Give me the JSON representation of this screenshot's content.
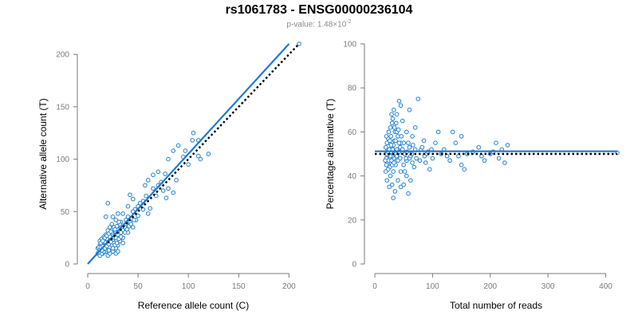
{
  "header": {
    "title": "rs1061783 - ENSG00000236104",
    "pvalue_prefix": "p-value: 1.48×10",
    "pvalue_exponent": "-2"
  },
  "colors": {
    "points": "#1f7fcf",
    "fit_line": "#1e7ad4",
    "reference_line": "#000000",
    "ticks": "#7a7a7a"
  },
  "chart_data": [
    {
      "type": "scatter",
      "xlabel": "Reference allele count (C)",
      "ylabel": "Alternative allele count (T)",
      "xlim": [
        0,
        210
      ],
      "ylim": [
        0,
        210
      ],
      "xticks": [
        0,
        50,
        100,
        150,
        200
      ],
      "yticks": [
        0,
        50,
        100,
        150,
        200
      ],
      "grid": false,
      "fit_line": {
        "from": [
          0,
          0
        ],
        "to": [
          200,
          210
        ],
        "style": "solid"
      },
      "reference_line": {
        "from": [
          20,
          20
        ],
        "to": [
          210,
          210
        ],
        "style": "dotted"
      },
      "points": [
        [
          210,
          210
        ],
        [
          105,
          125
        ],
        [
          110,
          118
        ],
        [
          90,
          113
        ],
        [
          85,
          108
        ],
        [
          95,
          102
        ],
        [
          110,
          103
        ],
        [
          112,
          100
        ],
        [
          120,
          105
        ],
        [
          100,
          95
        ],
        [
          70,
          88
        ],
        [
          77,
          86
        ],
        [
          88,
          80
        ],
        [
          70,
          75
        ],
        [
          80,
          72
        ],
        [
          75,
          70
        ],
        [
          85,
          68
        ],
        [
          65,
          72
        ],
        [
          68,
          65
        ],
        [
          78,
          63
        ],
        [
          58,
          65
        ],
        [
          55,
          60
        ],
        [
          52,
          58
        ],
        [
          50,
          55
        ],
        [
          47,
          52
        ],
        [
          45,
          50
        ],
        [
          55,
          52
        ],
        [
          60,
          48
        ],
        [
          62,
          53
        ],
        [
          40,
          45
        ],
        [
          42,
          40
        ],
        [
          38,
          38
        ],
        [
          48,
          42
        ],
        [
          50,
          46
        ],
        [
          37,
          35
        ],
        [
          33,
          40
        ],
        [
          35,
          32
        ],
        [
          30,
          36
        ],
        [
          28,
          30
        ],
        [
          25,
          28
        ],
        [
          22,
          30
        ],
        [
          20,
          25
        ],
        [
          18,
          22
        ],
        [
          15,
          20
        ],
        [
          12,
          18
        ],
        [
          10,
          15
        ],
        [
          13,
          14
        ],
        [
          16,
          16
        ],
        [
          20,
          20
        ],
        [
          25,
          22
        ],
        [
          28,
          25
        ],
        [
          30,
          28
        ],
        [
          33,
          30
        ],
        [
          35,
          25
        ],
        [
          40,
          30
        ],
        [
          45,
          35
        ],
        [
          18,
          12
        ],
        [
          20,
          14
        ],
        [
          22,
          16
        ],
        [
          24,
          18
        ],
        [
          26,
          20
        ],
        [
          28,
          15
        ],
        [
          30,
          18
        ],
        [
          32,
          22
        ],
        [
          35,
          20
        ],
        [
          15,
          10
        ],
        [
          12,
          12
        ],
        [
          14,
          15
        ],
        [
          16,
          18
        ],
        [
          18,
          20
        ],
        [
          20,
          8
        ],
        [
          22,
          10
        ],
        [
          25,
          12
        ],
        [
          28,
          10
        ],
        [
          30,
          12
        ],
        [
          10,
          10
        ],
        [
          12,
          8
        ],
        [
          14,
          10
        ],
        [
          16,
          12
        ],
        [
          18,
          14
        ],
        [
          12,
          22
        ],
        [
          14,
          24
        ],
        [
          16,
          26
        ],
        [
          18,
          28
        ],
        [
          20,
          32
        ],
        [
          22,
          35
        ],
        [
          24,
          38
        ],
        [
          18,
          45
        ],
        [
          20,
          58
        ],
        [
          25,
          45
        ],
        [
          28,
          42
        ],
        [
          30,
          48
        ],
        [
          35,
          48
        ],
        [
          38,
          42
        ],
        [
          32,
          38
        ],
        [
          26,
          35
        ],
        [
          24,
          30
        ],
        [
          22,
          26
        ],
        [
          19,
          24
        ],
        [
          17,
          21
        ],
        [
          11,
          16
        ],
        [
          13,
          20
        ],
        [
          15,
          22
        ],
        [
          17,
          25
        ],
        [
          19,
          27
        ],
        [
          21,
          29
        ],
        [
          23,
          31
        ],
        [
          27,
          33
        ],
        [
          29,
          36
        ],
        [
          31,
          40
        ],
        [
          40,
          55
        ],
        [
          45,
          62
        ],
        [
          42,
          66
        ],
        [
          57,
          75
        ],
        [
          60,
          80
        ],
        [
          65,
          85
        ],
        [
          73,
          78
        ],
        [
          80,
          100
        ],
        [
          97,
          108
        ],
        [
          104,
          118
        ],
        [
          25,
          15
        ],
        [
          27,
          18
        ],
        [
          29,
          20
        ],
        [
          31,
          24
        ],
        [
          33,
          26
        ],
        [
          37,
          30
        ],
        [
          39,
          33
        ],
        [
          41,
          36
        ],
        [
          43,
          38
        ],
        [
          46,
          42
        ],
        [
          12,
          13
        ],
        [
          14,
          13
        ],
        [
          11,
          11
        ],
        [
          13,
          16
        ],
        [
          15,
          17
        ],
        [
          17,
          15
        ],
        [
          19,
          17
        ],
        [
          21,
          19
        ],
        [
          23,
          21
        ],
        [
          21,
          13
        ]
      ]
    },
    {
      "type": "scatter",
      "xlabel": "Total number of reads",
      "ylabel": "Percentage alternative (T)",
      "xlim": [
        0,
        420
      ],
      "ylim": [
        0,
        100
      ],
      "xticks": [
        0,
        100,
        200,
        300,
        400
      ],
      "yticks": [
        0,
        20,
        40,
        60,
        80,
        100
      ],
      "grid": false,
      "fit_line": {
        "y": 51.2,
        "style": "solid"
      },
      "reference_line": {
        "y": 50,
        "style": "dotted"
      },
      "points": [
        [
          420,
          50.5
        ],
        [
          230,
          54
        ],
        [
          220,
          52
        ],
        [
          210,
          55
        ],
        [
          200,
          50
        ],
        [
          215,
          48
        ],
        [
          225,
          46
        ],
        [
          190,
          47
        ],
        [
          205,
          51
        ],
        [
          180,
          53
        ],
        [
          150,
          58
        ],
        [
          145,
          49
        ],
        [
          140,
          55
        ],
        [
          150,
          45
        ],
        [
          135,
          60
        ],
        [
          130,
          47
        ],
        [
          155,
          43
        ],
        [
          120,
          52
        ],
        [
          110,
          60
        ],
        [
          100,
          48
        ],
        [
          105,
          55
        ],
        [
          95,
          43
        ],
        [
          90,
          50
        ],
        [
          85,
          56
        ],
        [
          80,
          52
        ],
        [
          75,
          75
        ],
        [
          70,
          62
        ],
        [
          70,
          52
        ],
        [
          65,
          58
        ],
        [
          60,
          70
        ],
        [
          60,
          48
        ],
        [
          55,
          60
        ],
        [
          55,
          40
        ],
        [
          50,
          55
        ],
        [
          50,
          45
        ],
        [
          48,
          65
        ],
        [
          45,
          72
        ],
        [
          45,
          55
        ],
        [
          45,
          42
        ],
        [
          42,
          74
        ],
        [
          40,
          58
        ],
        [
          40,
          50
        ],
        [
          40,
          38
        ],
        [
          38,
          68
        ],
        [
          38,
          52
        ],
        [
          36,
          45
        ],
        [
          35,
          33
        ],
        [
          35,
          60
        ],
        [
          34,
          56
        ],
        [
          33,
          48
        ],
        [
          32,
          42
        ],
        [
          32,
          30
        ],
        [
          30,
          64
        ],
        [
          30,
          53
        ],
        [
          30,
          36
        ],
        [
          29,
          50
        ],
        [
          28,
          46
        ],
        [
          28,
          58
        ],
        [
          27,
          40
        ],
        [
          27,
          62
        ],
        [
          26,
          52
        ],
        [
          26,
          44
        ],
        [
          25,
          55
        ],
        [
          25,
          48
        ],
        [
          25,
          35
        ],
        [
          24,
          60
        ],
        [
          24,
          50
        ],
        [
          23,
          43
        ],
        [
          23,
          57
        ],
        [
          22,
          46
        ],
        [
          22,
          52
        ],
        [
          21,
          38
        ],
        [
          21,
          55
        ],
        [
          20,
          48
        ],
        [
          20,
          50
        ],
        [
          20,
          45
        ],
        [
          20,
          58
        ],
        [
          19,
          42
        ],
        [
          19,
          53
        ],
        [
          18,
          47
        ],
        [
          45,
          35
        ],
        [
          50,
          36
        ],
        [
          58,
          32
        ],
        [
          62,
          38
        ],
        [
          55,
          47
        ],
        [
          52,
          42
        ],
        [
          60,
          53
        ],
        [
          65,
          46
        ],
        [
          68,
          44
        ],
        [
          72,
          48
        ],
        [
          38,
          60
        ],
        [
          42,
          55
        ],
        [
          44,
          48
        ],
        [
          36,
          56
        ],
        [
          34,
          62
        ],
        [
          31,
          66
        ],
        [
          29,
          68
        ],
        [
          33,
          70
        ],
        [
          37,
          64
        ],
        [
          41,
          61
        ],
        [
          26,
          48
        ],
        [
          28,
          51
        ],
        [
          30,
          49
        ],
        [
          32,
          54
        ],
        [
          34,
          51
        ],
        [
          36,
          50
        ],
        [
          38,
          49
        ],
        [
          40,
          47
        ],
        [
          42,
          51
        ],
        [
          44,
          53
        ],
        [
          23,
          51
        ],
        [
          24,
          47
        ],
        [
          25,
          52
        ],
        [
          26,
          56
        ],
        [
          27,
          49
        ],
        [
          28,
          54
        ],
        [
          29,
          47
        ],
        [
          30,
          45
        ],
        [
          31,
          52
        ],
        [
          33,
          46
        ],
        [
          46,
          58
        ],
        [
          48,
          52
        ],
        [
          52,
          50
        ],
        [
          54,
          48
        ],
        [
          56,
          51
        ],
        [
          58,
          55
        ],
        [
          62,
          49
        ],
        [
          64,
          50
        ],
        [
          66,
          54
        ],
        [
          78,
          47
        ],
        [
          82,
          53
        ],
        [
          86,
          49
        ],
        [
          88,
          46
        ],
        [
          92,
          51
        ],
        [
          98,
          52
        ],
        [
          115,
          50
        ],
        [
          125,
          49
        ],
        [
          160,
          50
        ],
        [
          170,
          51
        ],
        [
          185,
          49
        ]
      ]
    }
  ]
}
